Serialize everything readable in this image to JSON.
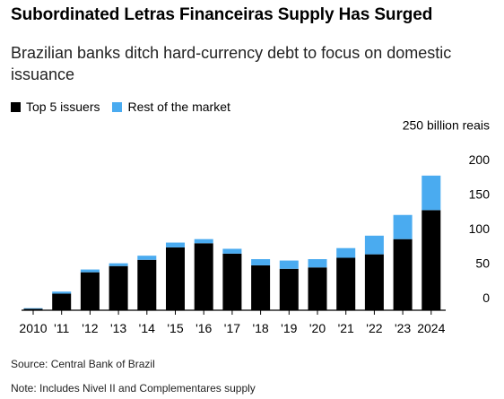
{
  "header": {
    "title": "Subordinated Letras Financeiras Supply Has Surged",
    "subtitle": "Brazilian banks ditch hard-currency debt to focus on domestic issuance"
  },
  "legend": {
    "top5": "Top 5 issuers",
    "rest": "Rest of the market"
  },
  "footer": {
    "source": "Source: Central Bank of Brazil",
    "note": "Note: Includes Nivel II and Complementares supply"
  },
  "colors": {
    "top5": "#000000",
    "rest": "#4aabf0",
    "axis": "#000000"
  },
  "chart_data": {
    "type": "bar",
    "stacked": true,
    "categories": [
      "2010",
      "'11",
      "'12",
      "'13",
      "'14",
      "'15",
      "'16",
      "'17",
      "'18",
      "'19",
      "'20",
      "'21",
      "'22",
      "'23",
      "2024"
    ],
    "series": [
      {
        "name": "Top 5 issuers",
        "values": [
          2,
          24,
          55,
          64,
          73,
          91,
          97,
          82,
          65,
          60,
          62,
          76,
          81,
          103,
          145
        ]
      },
      {
        "name": "Rest of the market",
        "values": [
          1,
          3,
          4,
          4,
          6,
          7,
          6,
          7,
          9,
          12,
          12,
          14,
          27,
          35,
          50
        ]
      }
    ],
    "y_unit_label": "250 billion reais",
    "y_ticks": [
      0,
      50,
      100,
      150,
      200
    ],
    "ylim": [
      0,
      250
    ],
    "axis_side": "right",
    "grid": false,
    "legend_position": "top-left"
  }
}
